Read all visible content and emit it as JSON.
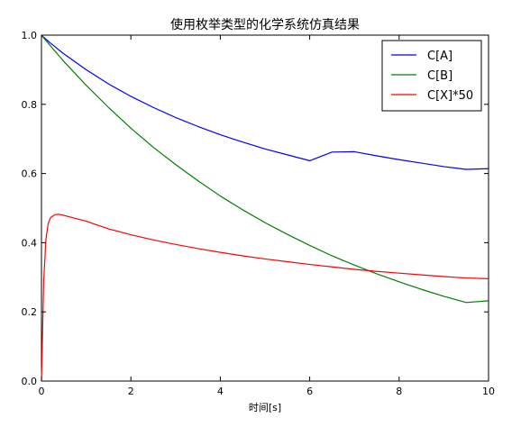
{
  "chart_data": {
    "type": "line",
    "title": "使用枚举类型的化学系统仿真结果",
    "xlabel": "时间[s]",
    "ylabel": "",
    "xlim": [
      0,
      10
    ],
    "ylim": [
      0,
      1.0
    ],
    "x_ticks": [
      "0",
      "2",
      "4",
      "6",
      "8",
      "10"
    ],
    "y_ticks": [
      "0.0",
      "0.2",
      "0.4",
      "0.6",
      "0.8",
      "1.0"
    ],
    "grid": false,
    "legend_position": "top-right",
    "x": [
      0,
      0.05,
      0.1,
      0.15,
      0.2,
      0.3,
      0.4,
      0.5,
      1,
      1.5,
      2,
      2.5,
      3,
      3.5,
      4,
      4.5,
      5,
      5.5,
      6,
      6.5,
      7,
      7.5,
      8,
      8.5,
      9,
      9.5,
      10
    ],
    "series": [
      {
        "name": "C[A]",
        "color": "#0000ff",
        "values": [
          1.0,
          0.994,
          0.988,
          0.983,
          0.977,
          0.967,
          0.956,
          0.946,
          0.9,
          0.859,
          0.823,
          0.791,
          0.762,
          0.736,
          0.712,
          0.691,
          0.671,
          0.654,
          0.637,
          0.662,
          0.663,
          0.651,
          0.64,
          0.63,
          0.62,
          0.612,
          0.614
        ]
      },
      {
        "name": "C[B]",
        "color": "#008000",
        "values": [
          1.0,
          0.992,
          0.984,
          0.977,
          0.969,
          0.954,
          0.939,
          0.924,
          0.855,
          0.791,
          0.731,
          0.676,
          0.626,
          0.579,
          0.535,
          0.495,
          0.458,
          0.424,
          0.392,
          0.362,
          0.335,
          0.31,
          0.287,
          0.265,
          0.245,
          0.227,
          0.232
        ]
      },
      {
        "name": "C[X]*50",
        "color": "#ff0000",
        "values": [
          0.0,
          0.29,
          0.41,
          0.455,
          0.472,
          0.481,
          0.482,
          0.479,
          0.462,
          0.44,
          0.423,
          0.408,
          0.395,
          0.383,
          0.372,
          0.362,
          0.353,
          0.345,
          0.337,
          0.33,
          0.323,
          0.317,
          0.312,
          0.307,
          0.302,
          0.298,
          0.296
        ]
      }
    ]
  }
}
